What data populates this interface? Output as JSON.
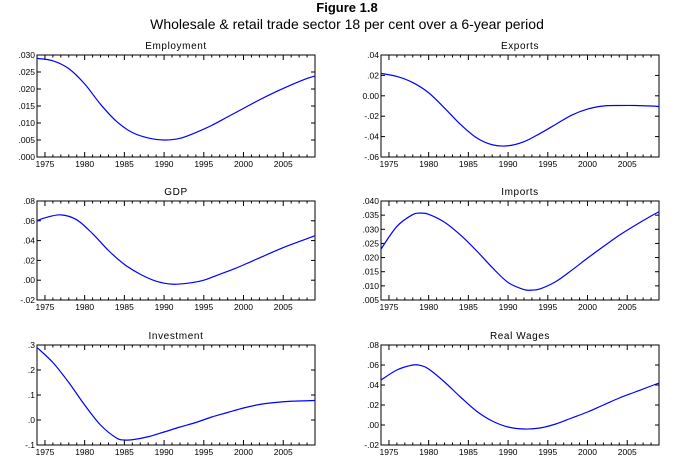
{
  "figure": {
    "title": "Figure 1.8",
    "subtitle": "Wholesale & retail trade sector 18 per cent over a 6-year period"
  },
  "colors": {
    "line": "#0000ff",
    "axis": "#000000"
  },
  "chart_data": [
    {
      "type": "line",
      "title": "Employment",
      "xlim": [
        1974,
        2009
      ],
      "xticks": [
        1975,
        1980,
        1985,
        1990,
        1995,
        2000,
        2005
      ],
      "xtick_labels": [
        "1975",
        "1980",
        "1985",
        "1990",
        "1995",
        "2000",
        "2005"
      ],
      "ylim": [
        0.0,
        0.03
      ],
      "yticks": [
        0.0,
        0.005,
        0.01,
        0.015,
        0.02,
        0.025,
        0.03
      ],
      "ytick_labels": [
        ".000",
        ".005",
        ".010",
        ".015",
        ".020",
        ".025",
        ".030"
      ],
      "x": [
        1974,
        1976,
        1978,
        1980,
        1982,
        1984,
        1986,
        1988,
        1990,
        1992,
        1994,
        1996,
        1998,
        2000,
        2002,
        2004,
        2006,
        2008,
        2009
      ],
      "y": [
        0.029,
        0.0283,
        0.026,
        0.0215,
        0.0155,
        0.0105,
        0.0072,
        0.0056,
        0.005,
        0.0055,
        0.0072,
        0.0093,
        0.0118,
        0.0143,
        0.0168,
        0.0191,
        0.0212,
        0.0231,
        0.0238
      ]
    },
    {
      "type": "line",
      "title": "Exports",
      "xlim": [
        1974,
        2009
      ],
      "xticks": [
        1975,
        1980,
        1985,
        1990,
        1995,
        2000,
        2005
      ],
      "xtick_labels": [
        "1975",
        "1980",
        "1985",
        "1990",
        "1995",
        "2000",
        "2005"
      ],
      "ylim": [
        -0.06,
        0.04
      ],
      "yticks": [
        -0.06,
        -0.04,
        -0.02,
        0.0,
        0.02,
        0.04
      ],
      "ytick_labels": [
        "-.06",
        "-.04",
        "-.02",
        "0.00",
        ".02",
        ".04"
      ],
      "x": [
        1974,
        1976,
        1978,
        1980,
        1982,
        1984,
        1986,
        1988,
        1990,
        1992,
        1994,
        1996,
        1998,
        2000,
        2002,
        2004,
        2006,
        2008,
        2009
      ],
      "y": [
        0.022,
        0.019,
        0.013,
        0.003,
        -0.012,
        -0.028,
        -0.041,
        -0.048,
        -0.049,
        -0.045,
        -0.037,
        -0.028,
        -0.019,
        -0.013,
        -0.01,
        -0.0095,
        -0.0095,
        -0.01,
        -0.0105
      ]
    },
    {
      "type": "line",
      "title": "GDP",
      "xlim": [
        1974,
        2009
      ],
      "xticks": [
        1975,
        1980,
        1985,
        1990,
        1995,
        2000,
        2005
      ],
      "xtick_labels": [
        "1975",
        "1980",
        "1985",
        "1990",
        "1995",
        "2000",
        "2005"
      ],
      "ylim": [
        -0.02,
        0.08
      ],
      "yticks": [
        -0.02,
        0.0,
        0.02,
        0.04,
        0.06,
        0.08
      ],
      "ytick_labels": [
        "-.02",
        ".00",
        ".02",
        ".04",
        ".06",
        ".08"
      ],
      "x": [
        1974,
        1975,
        1977,
        1979,
        1981,
        1983,
        1985,
        1987,
        1989,
        1991,
        1993,
        1995,
        1997,
        1999,
        2001,
        2003,
        2005,
        2007,
        2009
      ],
      "y": [
        0.06,
        0.063,
        0.066,
        0.061,
        0.047,
        0.03,
        0.016,
        0.006,
        -0.001,
        -0.004,
        -0.003,
        0.0,
        0.006,
        0.012,
        0.019,
        0.026,
        0.033,
        0.039,
        0.045
      ]
    },
    {
      "type": "line",
      "title": "Imports",
      "xlim": [
        1974,
        2009
      ],
      "xticks": [
        1975,
        1980,
        1985,
        1990,
        1995,
        2000,
        2005
      ],
      "xtick_labels": [
        "1975",
        "1980",
        "1985",
        "1990",
        "1995",
        "2000",
        "2005"
      ],
      "ylim": [
        0.005,
        0.04
      ],
      "yticks": [
        0.005,
        0.01,
        0.015,
        0.02,
        0.025,
        0.03,
        0.035,
        0.04
      ],
      "ytick_labels": [
        ".005",
        ".010",
        ".015",
        ".020",
        ".025",
        ".030",
        ".035",
        ".040"
      ],
      "x": [
        1974,
        1976,
        1978,
        1979,
        1980,
        1982,
        1984,
        1986,
        1988,
        1990,
        1992,
        1993,
        1994,
        1996,
        1998,
        2000,
        2002,
        2004,
        2006,
        2008,
        2009
      ],
      "y": [
        0.023,
        0.031,
        0.0352,
        0.0357,
        0.0353,
        0.0325,
        0.028,
        0.0225,
        0.0165,
        0.0112,
        0.0087,
        0.0085,
        0.0089,
        0.0115,
        0.0155,
        0.0198,
        0.0239,
        0.0279,
        0.0314,
        0.0347,
        0.0362
      ]
    },
    {
      "type": "line",
      "title": "Investment",
      "xlim": [
        1974,
        2009
      ],
      "xticks": [
        1975,
        1980,
        1985,
        1990,
        1995,
        2000,
        2005
      ],
      "xtick_labels": [
        "1975",
        "1980",
        "1985",
        "1990",
        "1995",
        "2000",
        "2005"
      ],
      "ylim": [
        -0.1,
        0.3
      ],
      "yticks": [
        -0.1,
        0.0,
        0.1,
        0.2,
        0.3
      ],
      "ytick_labels": [
        "-.1",
        ".0",
        ".1",
        ".2",
        ".3"
      ],
      "x": [
        1974,
        1976,
        1978,
        1980,
        1982,
        1984,
        1985,
        1986,
        1988,
        1990,
        1992,
        1994,
        1996,
        1998,
        2000,
        2002,
        2004,
        2006,
        2008,
        2009
      ],
      "y": [
        0.29,
        0.23,
        0.15,
        0.06,
        -0.02,
        -0.072,
        -0.08,
        -0.079,
        -0.067,
        -0.048,
        -0.028,
        -0.01,
        0.012,
        0.03,
        0.048,
        0.062,
        0.07,
        0.075,
        0.077,
        0.078
      ]
    },
    {
      "type": "line",
      "title": "Real Wages",
      "xlim": [
        1974,
        2009
      ],
      "xticks": [
        1975,
        1980,
        1985,
        1990,
        1995,
        2000,
        2005
      ],
      "xtick_labels": [
        "1975",
        "1980",
        "1985",
        "1990",
        "1995",
        "2000",
        "2005"
      ],
      "ylim": [
        -0.02,
        0.08
      ],
      "yticks": [
        -0.02,
        0.0,
        0.02,
        0.04,
        0.06,
        0.08
      ],
      "ytick_labels": [
        "-.02",
        ".00",
        ".02",
        ".04",
        ".06",
        ".08"
      ],
      "x": [
        1974,
        1976,
        1978,
        1979,
        1980,
        1982,
        1984,
        1986,
        1988,
        1990,
        1992,
        1994,
        1996,
        1998,
        2000,
        2002,
        2004,
        2006,
        2008,
        2009
      ],
      "y": [
        0.045,
        0.055,
        0.06,
        0.0595,
        0.056,
        0.043,
        0.028,
        0.014,
        0.004,
        -0.002,
        -0.004,
        -0.003,
        0.001,
        0.007,
        0.013,
        0.02,
        0.027,
        0.033,
        0.039,
        0.042
      ]
    }
  ]
}
